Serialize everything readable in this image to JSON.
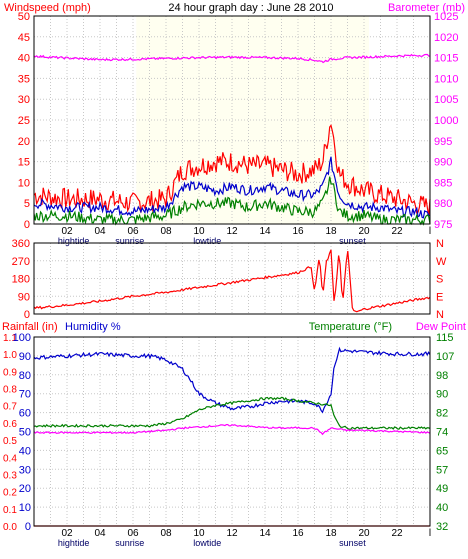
{
  "chart_data": [
    {
      "id": "wind_baro",
      "type": "line",
      "title": "24 hour graph day : June 28 2010",
      "left_axis_label": "Windspeed (mph)",
      "right_axis_label": "Barometer (mb)",
      "left_ylim": [
        0,
        50
      ],
      "left_ticks": [
        "0",
        "5",
        "10",
        "15",
        "20",
        "25",
        "30",
        "35",
        "40",
        "45",
        "50"
      ],
      "right_ylim": [
        975,
        1025
      ],
      "right_ticks": [
        "975",
        "980",
        "985",
        "990",
        "995",
        "1000",
        "1005",
        "1010",
        "1015",
        "1020",
        "1025"
      ],
      "x_ticks": [
        "02",
        "04",
        "06",
        "08",
        "10",
        "12",
        "14",
        "16",
        "18",
        "20",
        "22"
      ],
      "end_label": "l",
      "bottom_labels": [
        {
          "text": "hightide",
          "hour": 2.4
        },
        {
          "text": "sunrise",
          "hour": 5.8
        },
        {
          "text": "lowtide",
          "hour": 10.5
        },
        {
          "text": "sunset",
          "hour": 19.3
        }
      ],
      "day_bands": [
        [
          6.2,
          20.3
        ]
      ],
      "series": [
        {
          "axis": "left",
          "color": "#ff0000",
          "hours": [
            0,
            2,
            4,
            6,
            8,
            9,
            10,
            11,
            12,
            13,
            14,
            15,
            16,
            17,
            17.5,
            18,
            18.5,
            19,
            20,
            21,
            22,
            23,
            24
          ],
          "values": [
            7,
            6,
            6,
            5,
            6,
            13,
            14,
            15,
            15,
            14,
            14,
            13,
            12,
            13,
            15,
            25,
            12,
            10,
            8,
            7,
            6,
            5,
            4
          ]
        },
        {
          "axis": "left",
          "color": "#0000cc",
          "hours": [
            0,
            2,
            4,
            6,
            8,
            9,
            10,
            11,
            12,
            13,
            14,
            15,
            16,
            17,
            17.5,
            18,
            18.5,
            19,
            20,
            21,
            22,
            23,
            24
          ],
          "values": [
            5,
            4,
            4,
            3,
            4,
            9,
            9,
            8,
            9,
            8,
            9,
            8,
            7,
            7,
            9,
            15,
            7,
            5,
            4,
            4,
            3,
            3,
            2
          ]
        },
        {
          "axis": "left",
          "color": "#008000",
          "hours": [
            0,
            2,
            4,
            6,
            8,
            9,
            10,
            11,
            12,
            13,
            14,
            15,
            16,
            17,
            17.5,
            18,
            18.5,
            19,
            20,
            21,
            22,
            23,
            24
          ],
          "values": [
            2,
            2,
            1,
            1,
            2,
            4,
            5,
            5,
            5,
            4,
            5,
            4,
            3,
            3,
            5,
            11,
            3,
            2,
            2,
            1,
            1,
            1,
            1
          ]
        },
        {
          "axis": "right",
          "color": "#ff00ff",
          "hours": [
            0,
            1,
            2,
            3,
            4,
            6,
            8,
            10,
            12,
            14,
            16,
            17,
            17.5,
            18,
            19,
            20,
            22,
            24
          ],
          "values": [
            1015.4,
            1015.1,
            1014.9,
            1014.7,
            1014.5,
            1014.6,
            1014.8,
            1015.0,
            1015.1,
            1015.0,
            1014.8,
            1014.4,
            1014.0,
            1014.6,
            1015.0,
            1015.1,
            1015.4,
            1015.6
          ]
        }
      ]
    },
    {
      "id": "wind_dir",
      "type": "line",
      "left_ylim": [
        0,
        360
      ],
      "left_ticks": [
        "0",
        "90",
        "180",
        "270",
        "360"
      ],
      "right_ticks": [
        "N",
        "E",
        "S",
        "W",
        "N"
      ],
      "series": [
        {
          "axis": "left",
          "color": "#ff0000",
          "hours": [
            0,
            2,
            4,
            6,
            8,
            10,
            12,
            14,
            16,
            16.8,
            17,
            17.3,
            17.5,
            17.7,
            18,
            18.2,
            18.5,
            18.7,
            19,
            19.3,
            19.6,
            20,
            22,
            24
          ],
          "values": [
            30,
            45,
            65,
            90,
            110,
            135,
            160,
            185,
            210,
            240,
            110,
            300,
            80,
            260,
            320,
            50,
            330,
            40,
            340,
            20,
            10,
            25,
            55,
            85
          ]
        }
      ]
    },
    {
      "id": "rain_hum_temp",
      "type": "line",
      "left_axis_label": "Rainfall (in)",
      "left2_axis_label": "Humidity %",
      "right_axis_label": "Temperature (°F)",
      "right2_axis_label": "Dew Point",
      "rain_ticks": [
        "0.0",
        "0.1",
        "0.2",
        "0.3",
        "0.4",
        "0.5",
        "0.6",
        "0.7",
        "0.8",
        "0.9",
        "1.0",
        "1.1"
      ],
      "humidity_ylim": [
        0,
        100
      ],
      "humidity_ticks": [
        "0",
        "10",
        "20",
        "30",
        "40",
        "50",
        "60",
        "70",
        "80",
        "90",
        "100"
      ],
      "temp_ylim": [
        32,
        115
      ],
      "temp_ticks": [
        "32",
        "40",
        "49",
        "57",
        "65",
        "74",
        "82",
        "90",
        "98",
        "107",
        "115"
      ],
      "x_ticks": [
        "02",
        "04",
        "06",
        "08",
        "10",
        "12",
        "14",
        "16",
        "18",
        "20",
        "22"
      ],
      "end_label": "l",
      "bottom_labels": [
        {
          "text": "hightide",
          "hour": 2.4
        },
        {
          "text": "sunrise",
          "hour": 5.8
        },
        {
          "text": "lowtide",
          "hour": 10.5
        },
        {
          "text": "sunset",
          "hour": 19.3
        }
      ],
      "series": [
        {
          "axis": "humidity",
          "color": "#0000cc",
          "hours": [
            0,
            2,
            4,
            6,
            7,
            8,
            9,
            9.5,
            10,
            11,
            12,
            13,
            14,
            15,
            16,
            17,
            17.5,
            18,
            18.2,
            18.5,
            20,
            22,
            24
          ],
          "values": [
            89,
            90,
            91,
            90,
            90,
            88,
            83,
            77,
            70,
            65,
            62,
            63,
            65,
            66,
            66,
            65,
            61,
            70,
            85,
            93,
            92,
            91,
            91
          ]
        },
        {
          "axis": "temp",
          "color": "#008000",
          "hours": [
            0,
            2,
            4,
            6,
            7,
            8,
            9,
            10,
            11,
            12,
            13,
            14,
            15,
            16,
            17,
            18,
            18.2,
            18.5,
            19,
            20,
            22,
            24
          ],
          "values": [
            76,
            76,
            76,
            76,
            76,
            77,
            79,
            83,
            85,
            86,
            87,
            88,
            88,
            87,
            86,
            85,
            80,
            76,
            75,
            75,
            75,
            75
          ]
        },
        {
          "axis": "temp",
          "color": "#ff00ff",
          "hours": [
            0,
            2,
            4,
            6,
            8,
            9,
            10,
            11,
            12,
            13,
            14,
            15,
            16,
            17,
            17.5,
            18,
            18.5,
            19,
            20,
            22,
            24
          ],
          "values": [
            73,
            73,
            73,
            73,
            74,
            75,
            75.5,
            76,
            76.3,
            75.8,
            75.2,
            75.0,
            75.1,
            75.0,
            72.5,
            75.0,
            74.5,
            74.0,
            74.0,
            73.5,
            73.0
          ]
        },
        {
          "axis": "rain",
          "color": "#ff0000",
          "hours": [
            0,
            24
          ],
          "values": [
            0,
            0
          ]
        }
      ]
    }
  ],
  "colors": {
    "windspeed": "#ff0000",
    "barometer": "#ff00ff",
    "humidity": "#0000cc",
    "temperature": "#008000",
    "dewpoint": "#ff00ff"
  }
}
